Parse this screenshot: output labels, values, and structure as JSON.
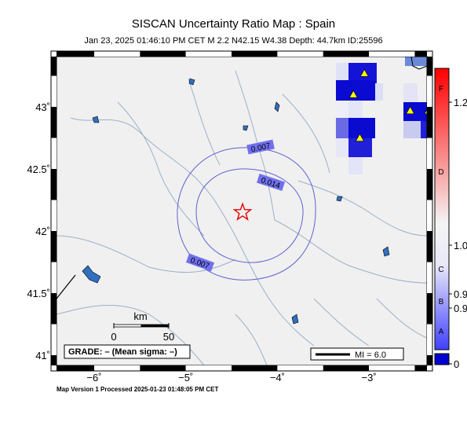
{
  "title": "SISCAN Uncertainty Ratio Map : Spain",
  "event_info": "Jan 23, 2025 01:46:10 PM CET   M 2.2   N42.15 W4.38   Depth: 44.7km   ID:25596",
  "footer": "Map Version 1 Processed 2025-01-23 01:48:05 PM CET",
  "grade_label": "GRADE: – (Mean sigma: –)",
  "mi_label": "MI = 6.0",
  "scale_bar": {
    "unit": "km",
    "labels": [
      "0",
      "50"
    ]
  },
  "lon_ticks": [
    {
      "value": -6,
      "label": "−6˚"
    },
    {
      "value": -5,
      "label": "−5˚"
    },
    {
      "value": -4,
      "label": "−4˚"
    },
    {
      "value": -3,
      "label": "−3˚"
    }
  ],
  "lat_ticks": [
    {
      "value": 43,
      "label": "43˚"
    },
    {
      "value": 42.5,
      "label": "42.5˚"
    },
    {
      "value": 42,
      "label": "42˚"
    },
    {
      "value": 41.5,
      "label": "41.5˚"
    },
    {
      "value": 41,
      "label": "41˚"
    }
  ],
  "contours": [
    {
      "label": "0.007"
    },
    {
      "label": "0.014"
    },
    {
      "label": "0.007"
    }
  ],
  "epicenter": {
    "lon": -4.38,
    "lat": 42.15,
    "color": "#e00000"
  },
  "stations": [
    {
      "lon": -3.05,
      "lat": 43.27
    },
    {
      "lon": -3.17,
      "lat": 43.1
    },
    {
      "lon": -3.1,
      "lat": 42.75
    },
    {
      "lon": -2.55,
      "lat": 42.97
    },
    {
      "lon": -2.35,
      "lat": 42.97
    }
  ],
  "colorbar": {
    "right_labels": [
      "1.2",
      "1.0",
      "0.9",
      "0.9",
      "0"
    ],
    "letters": [
      "F",
      "D",
      "C",
      "B",
      "A"
    ],
    "colors": {
      "high": "#ff0000",
      "mid": "#f4f4f4",
      "low": "#4040ff",
      "base": "#0000d0"
    }
  },
  "colors": {
    "land": "#f0f0f0",
    "river": "#9ab0c8",
    "contour": "#6060d0",
    "contour_label_bg": "#7070ee",
    "station": "#ffff00",
    "lake": "#3070c0"
  }
}
